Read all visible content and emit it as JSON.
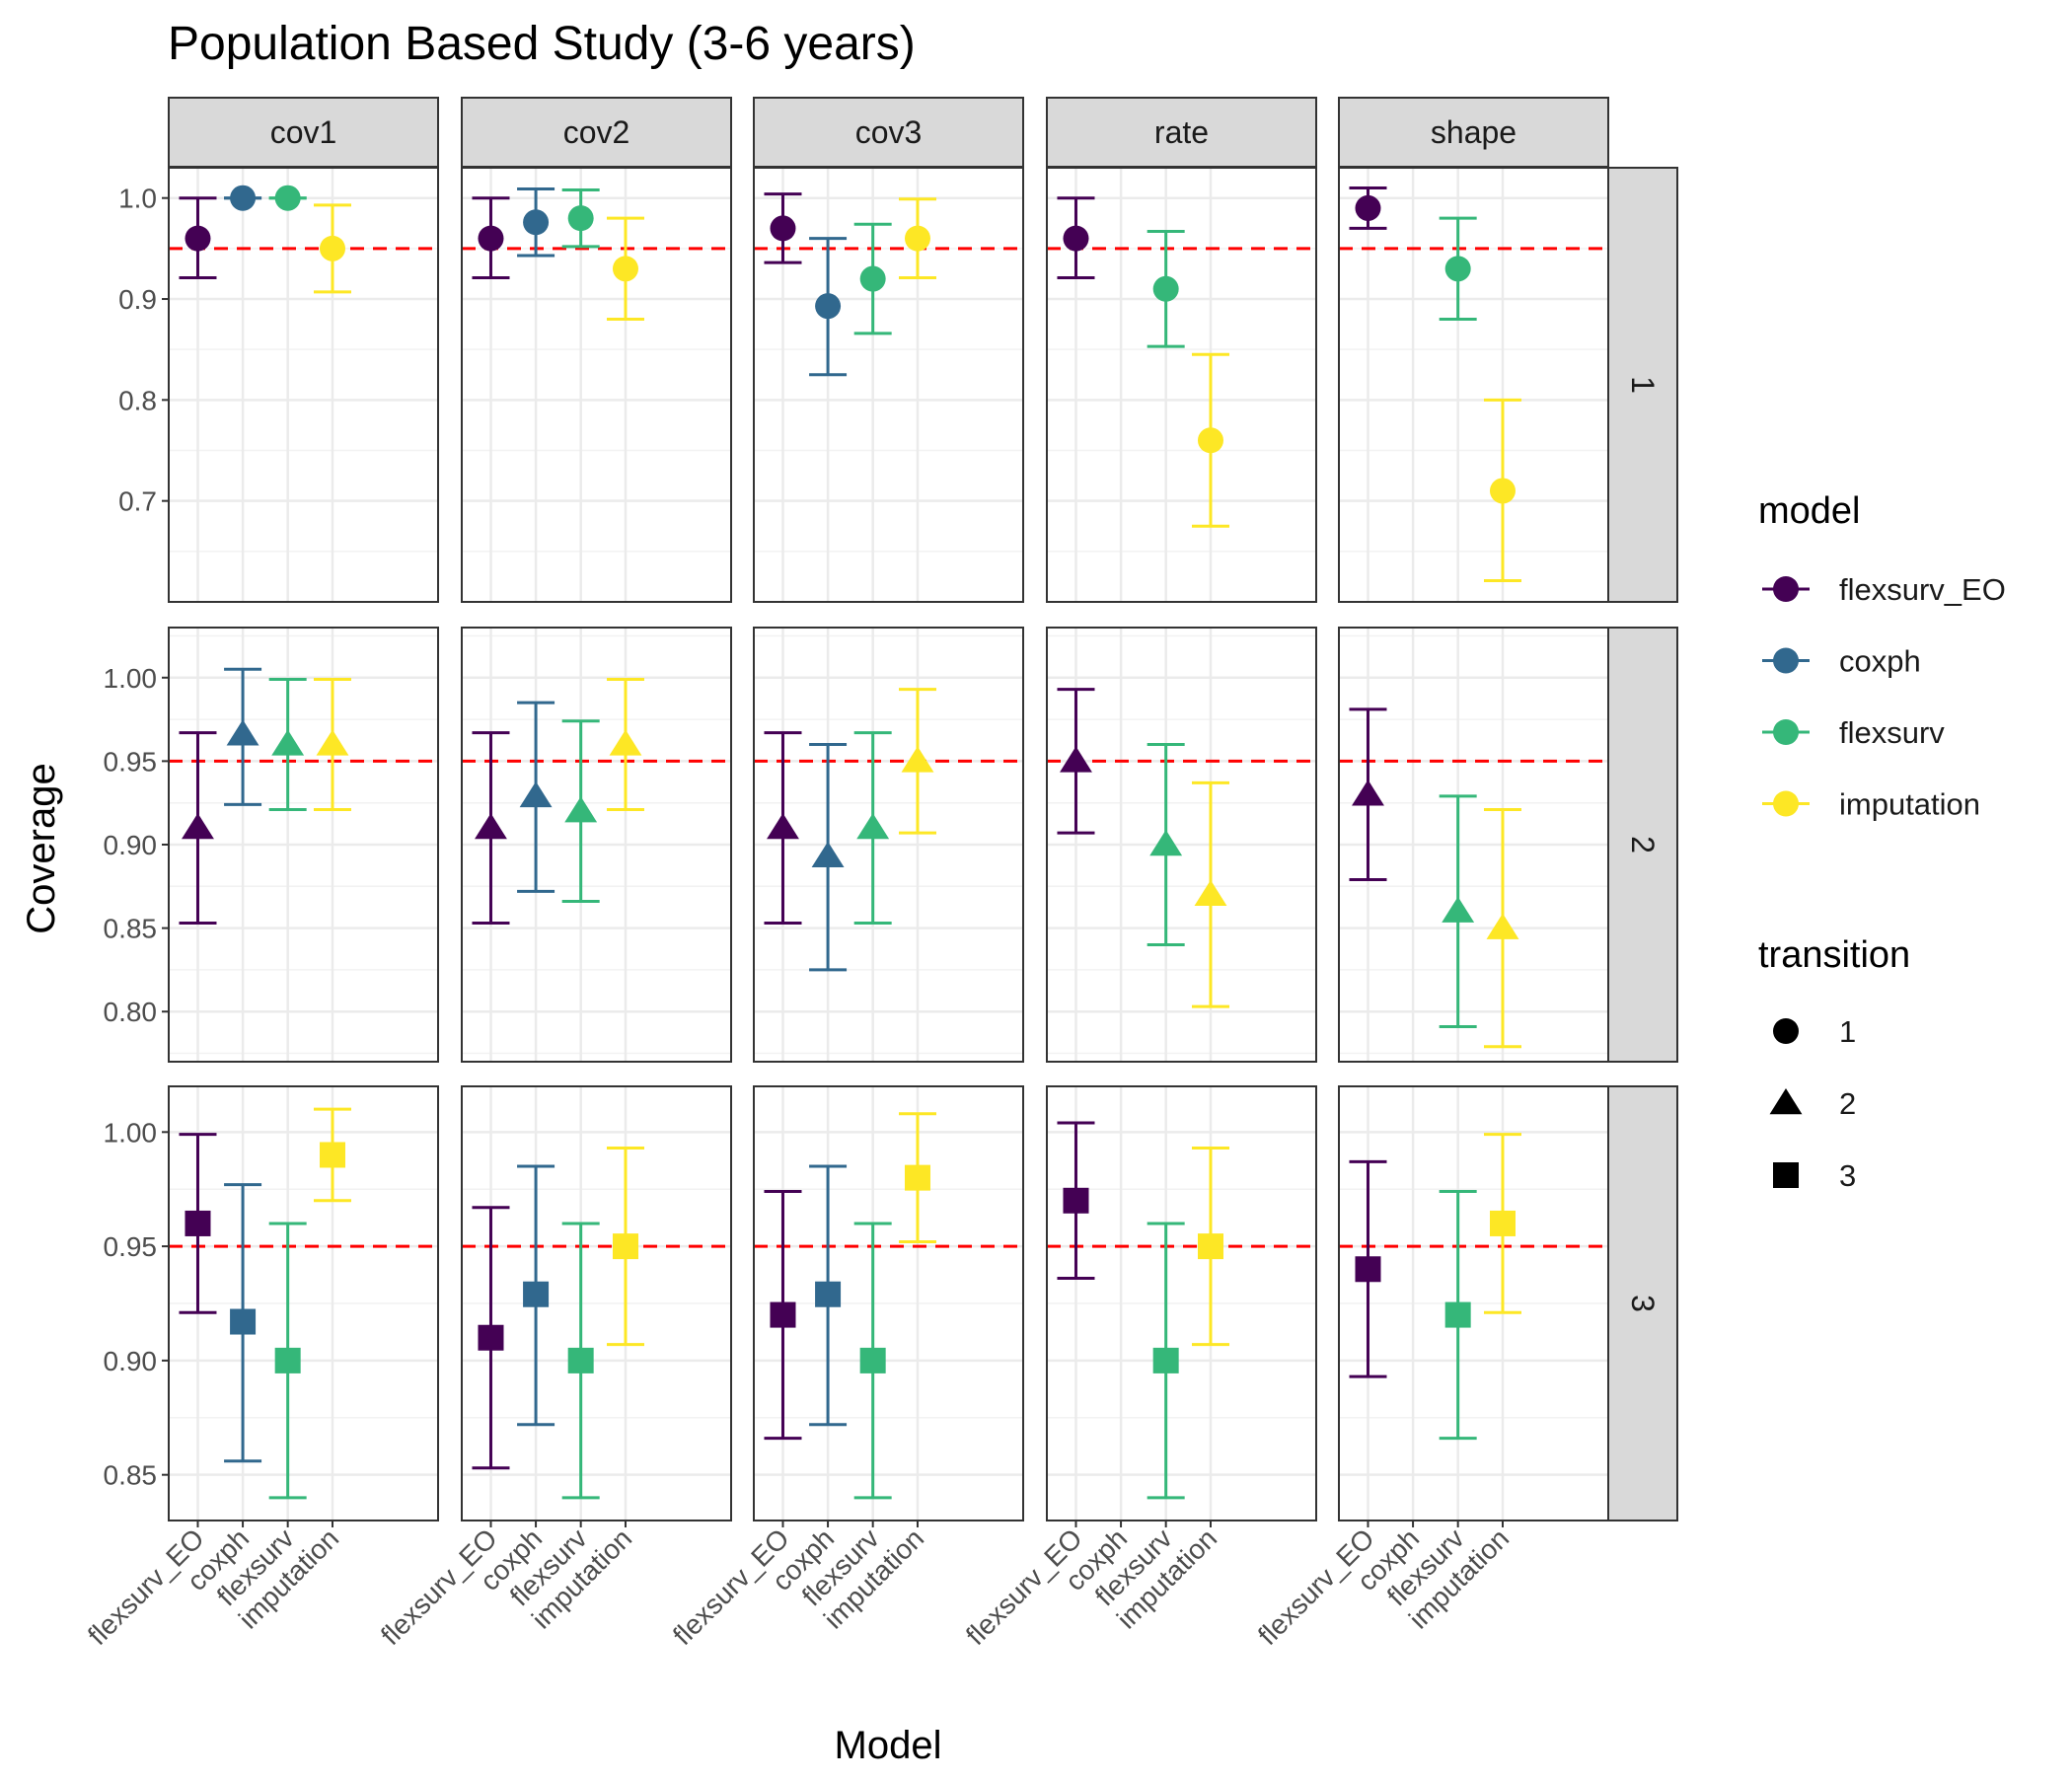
{
  "chart_data": {
    "type": "scatter",
    "title": "Population Based Study (3-6 years)",
    "xlabel": "Model",
    "ylabel": "Coverage",
    "facet_columns": [
      "cov1",
      "cov2",
      "cov3",
      "rate",
      "shape"
    ],
    "facet_rows": [
      "1",
      "2",
      "3"
    ],
    "categories": [
      "flexsurv_EO",
      "coxph",
      "flexsurv",
      "imputation"
    ],
    "reference_line": 0.95,
    "reference_color": "#FF0000",
    "grid": true,
    "legend_position": "right",
    "model_legend": {
      "title": "model",
      "entries": [
        {
          "label": "flexsurv_EO",
          "color": "#440154"
        },
        {
          "label": "coxph",
          "color": "#31688E"
        },
        {
          "label": "flexsurv",
          "color": "#35B779"
        },
        {
          "label": "imputation",
          "color": "#FDE725"
        }
      ]
    },
    "transition_legend": {
      "title": "transition",
      "entries": [
        {
          "label": "1",
          "shape": "circle"
        },
        {
          "label": "2",
          "shape": "triangle"
        },
        {
          "label": "3",
          "shape": "square"
        }
      ]
    },
    "rows": [
      {
        "transition": "1",
        "shape": "circle",
        "ylim": [
          0.6,
          1.03
        ],
        "ticks": [
          0.7,
          0.8,
          0.9,
          1.0
        ],
        "tick_labels": [
          "0.7",
          "0.8",
          "0.9",
          "1.0"
        ],
        "panels": {
          "cov1": [
            {
              "model": "flexsurv_EO",
              "y": 0.96,
              "lo": 0.921,
              "hi": 1.0
            },
            {
              "model": "coxph",
              "y": 1.0,
              "lo": 1.0,
              "hi": 1.0
            },
            {
              "model": "flexsurv",
              "y": 1.0,
              "lo": 1.0,
              "hi": 1.0
            },
            {
              "model": "imputation",
              "y": 0.95,
              "lo": 0.907,
              "hi": 0.993
            }
          ],
          "cov2": [
            {
              "model": "flexsurv_EO",
              "y": 0.96,
              "lo": 0.921,
              "hi": 1.0
            },
            {
              "model": "coxph",
              "y": 0.976,
              "lo": 0.943,
              "hi": 1.009
            },
            {
              "model": "flexsurv",
              "y": 0.98,
              "lo": 0.952,
              "hi": 1.008
            },
            {
              "model": "imputation",
              "y": 0.93,
              "lo": 0.88,
              "hi": 0.98
            }
          ],
          "cov3": [
            {
              "model": "flexsurv_EO",
              "y": 0.97,
              "lo": 0.936,
              "hi": 1.004
            },
            {
              "model": "coxph",
              "y": 0.893,
              "lo": 0.825,
              "hi": 0.96
            },
            {
              "model": "flexsurv",
              "y": 0.92,
              "lo": 0.866,
              "hi": 0.974
            },
            {
              "model": "imputation",
              "y": 0.96,
              "lo": 0.921,
              "hi": 0.999
            }
          ],
          "rate": [
            {
              "model": "flexsurv_EO",
              "y": 0.96,
              "lo": 0.921,
              "hi": 1.0
            },
            {
              "model": "flexsurv",
              "y": 0.91,
              "lo": 0.853,
              "hi": 0.967
            },
            {
              "model": "imputation",
              "y": 0.76,
              "lo": 0.675,
              "hi": 0.845
            }
          ],
          "shape": [
            {
              "model": "flexsurv_EO",
              "y": 0.99,
              "lo": 0.97,
              "hi": 1.01
            },
            {
              "model": "flexsurv",
              "y": 0.93,
              "lo": 0.88,
              "hi": 0.98
            },
            {
              "model": "imputation",
              "y": 0.71,
              "lo": 0.621,
              "hi": 0.8
            }
          ]
        }
      },
      {
        "transition": "2",
        "shape": "triangle",
        "ylim": [
          0.77,
          1.03
        ],
        "ticks": [
          0.8,
          0.85,
          0.9,
          0.95,
          1.0
        ],
        "tick_labels": [
          "0.80",
          "0.85",
          "0.90",
          "0.95",
          "1.00"
        ],
        "panels": {
          "cov1": [
            {
              "model": "flexsurv_EO",
              "y": 0.91,
              "lo": 0.853,
              "hi": 0.967
            },
            {
              "model": "coxph",
              "y": 0.966,
              "lo": 0.924,
              "hi": 1.005
            },
            {
              "model": "flexsurv",
              "y": 0.96,
              "lo": 0.921,
              "hi": 0.999
            },
            {
              "model": "imputation",
              "y": 0.96,
              "lo": 0.921,
              "hi": 0.999
            }
          ],
          "cov2": [
            {
              "model": "flexsurv_EO",
              "y": 0.91,
              "lo": 0.853,
              "hi": 0.967
            },
            {
              "model": "coxph",
              "y": 0.929,
              "lo": 0.872,
              "hi": 0.985
            },
            {
              "model": "flexsurv",
              "y": 0.92,
              "lo": 0.866,
              "hi": 0.974
            },
            {
              "model": "imputation",
              "y": 0.96,
              "lo": 0.921,
              "hi": 0.999
            }
          ],
          "cov3": [
            {
              "model": "flexsurv_EO",
              "y": 0.91,
              "lo": 0.853,
              "hi": 0.967
            },
            {
              "model": "coxph",
              "y": 0.893,
              "lo": 0.825,
              "hi": 0.96
            },
            {
              "model": "flexsurv",
              "y": 0.91,
              "lo": 0.853,
              "hi": 0.967
            },
            {
              "model": "imputation",
              "y": 0.95,
              "lo": 0.907,
              "hi": 0.993
            }
          ],
          "rate": [
            {
              "model": "flexsurv_EO",
              "y": 0.95,
              "lo": 0.907,
              "hi": 0.993
            },
            {
              "model": "flexsurv",
              "y": 0.9,
              "lo": 0.84,
              "hi": 0.96
            },
            {
              "model": "imputation",
              "y": 0.87,
              "lo": 0.803,
              "hi": 0.937
            }
          ],
          "shape": [
            {
              "model": "flexsurv_EO",
              "y": 0.93,
              "lo": 0.879,
              "hi": 0.981
            },
            {
              "model": "flexsurv",
              "y": 0.86,
              "lo": 0.791,
              "hi": 0.929
            },
            {
              "model": "imputation",
              "y": 0.85,
              "lo": 0.779,
              "hi": 0.921
            }
          ]
        }
      },
      {
        "transition": "3",
        "shape": "square",
        "ylim": [
          0.83,
          1.02
        ],
        "ticks": [
          0.85,
          0.9,
          0.95,
          1.0
        ],
        "tick_labels": [
          "0.85",
          "0.90",
          "0.95",
          "1.00"
        ],
        "panels": {
          "cov1": [
            {
              "model": "flexsurv_EO",
              "y": 0.96,
              "lo": 0.921,
              "hi": 0.999
            },
            {
              "model": "coxph",
              "y": 0.917,
              "lo": 0.856,
              "hi": 0.977
            },
            {
              "model": "flexsurv",
              "y": 0.9,
              "lo": 0.84,
              "hi": 0.96
            },
            {
              "model": "imputation",
              "y": 0.99,
              "lo": 0.97,
              "hi": 1.01
            }
          ],
          "cov2": [
            {
              "model": "flexsurv_EO",
              "y": 0.91,
              "lo": 0.853,
              "hi": 0.967
            },
            {
              "model": "coxph",
              "y": 0.929,
              "lo": 0.872,
              "hi": 0.985
            },
            {
              "model": "flexsurv",
              "y": 0.9,
              "lo": 0.84,
              "hi": 0.96
            },
            {
              "model": "imputation",
              "y": 0.95,
              "lo": 0.907,
              "hi": 0.993
            }
          ],
          "cov3": [
            {
              "model": "flexsurv_EO",
              "y": 0.92,
              "lo": 0.866,
              "hi": 0.974
            },
            {
              "model": "coxph",
              "y": 0.929,
              "lo": 0.872,
              "hi": 0.985
            },
            {
              "model": "flexsurv",
              "y": 0.9,
              "lo": 0.84,
              "hi": 0.96
            },
            {
              "model": "imputation",
              "y": 0.98,
              "lo": 0.952,
              "hi": 1.008
            }
          ],
          "rate": [
            {
              "model": "flexsurv_EO",
              "y": 0.97,
              "lo": 0.936,
              "hi": 1.004
            },
            {
              "model": "flexsurv",
              "y": 0.9,
              "lo": 0.84,
              "hi": 0.96
            },
            {
              "model": "imputation",
              "y": 0.95,
              "lo": 0.907,
              "hi": 0.993
            }
          ],
          "shape": [
            {
              "model": "flexsurv_EO",
              "y": 0.94,
              "lo": 0.893,
              "hi": 0.987
            },
            {
              "model": "flexsurv",
              "y": 0.92,
              "lo": 0.866,
              "hi": 0.974
            },
            {
              "model": "imputation",
              "y": 0.96,
              "lo": 0.921,
              "hi": 0.999
            }
          ]
        }
      }
    ]
  }
}
